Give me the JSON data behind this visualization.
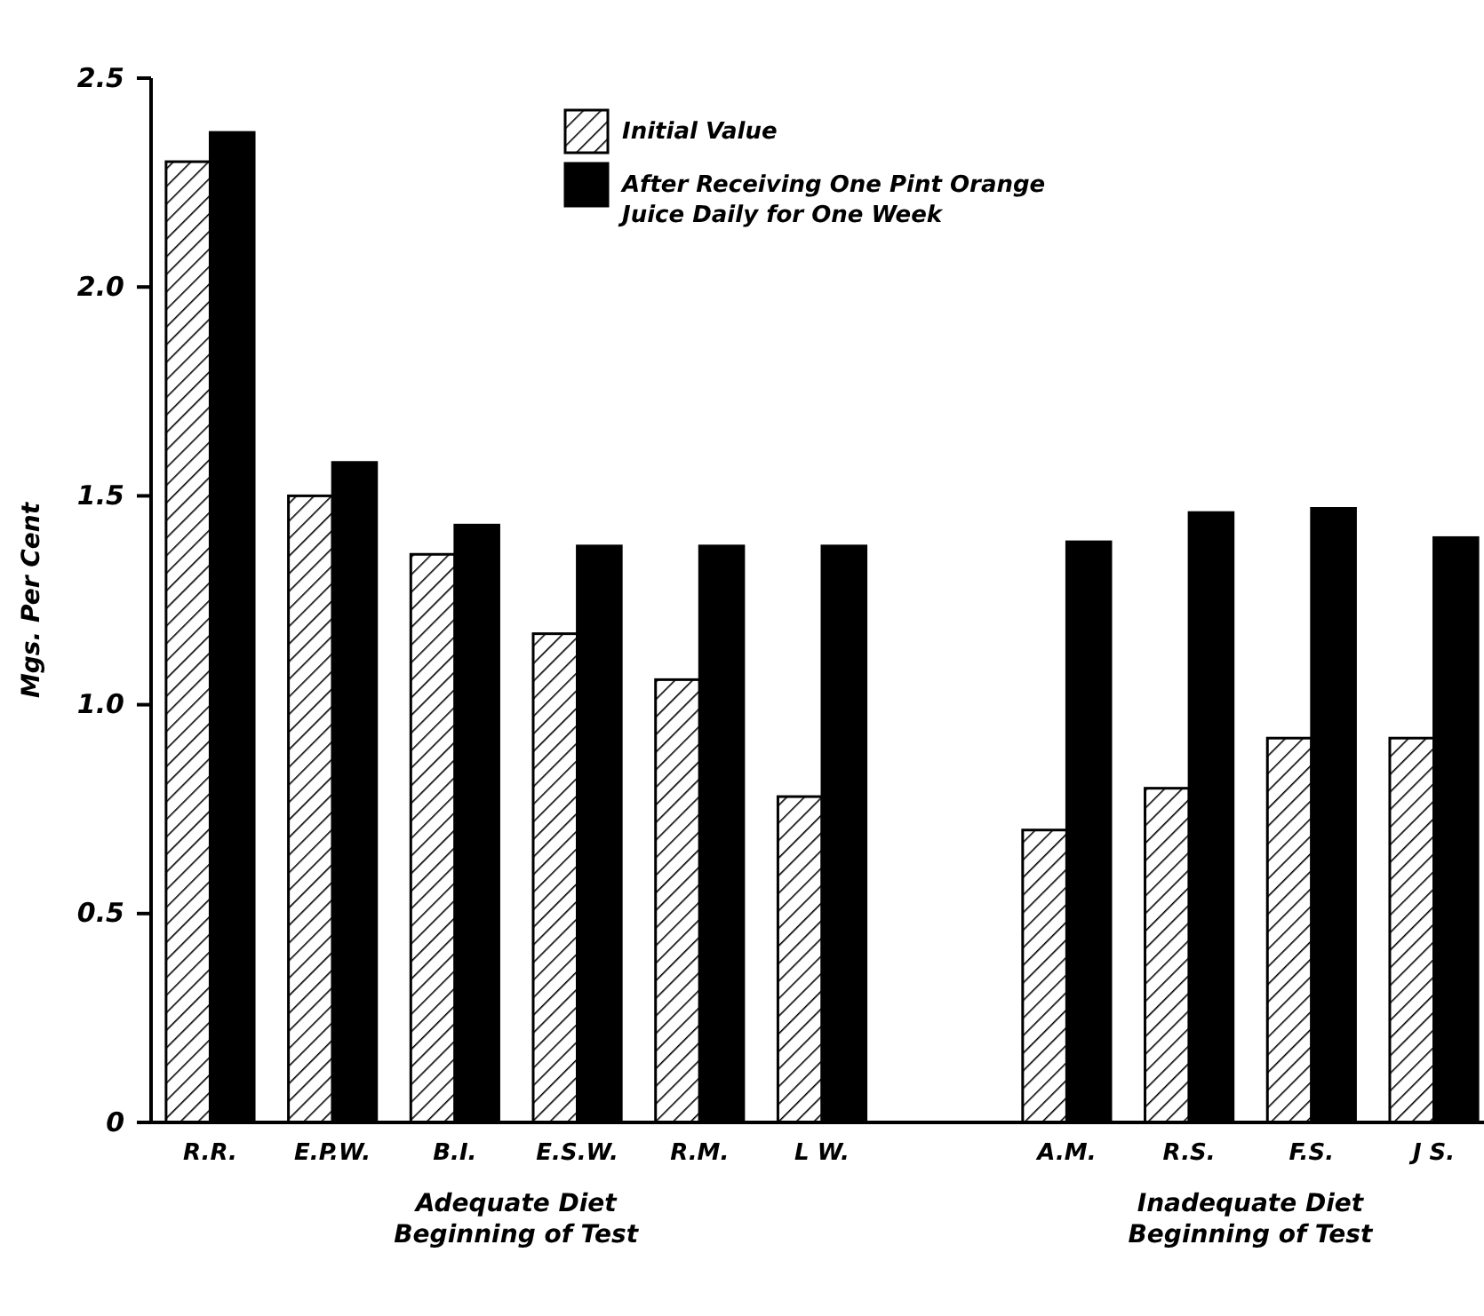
{
  "chart_data": {
    "type": "bar",
    "ylabel": "Mgs. Per Cent",
    "categories": [
      "R.R.",
      "E.P.W.",
      "B.I.",
      "E.S.W.",
      "R.M.",
      "L W.",
      null,
      "A.M.",
      "R.S.",
      "F.S.",
      "J S."
    ],
    "series": [
      {
        "name": "Initial Value",
        "color": "#000000",
        "values": [
          2.3,
          1.5,
          1.36,
          1.17,
          1.06,
          0.78,
          null,
          0.7,
          0.8,
          0.92,
          0.92
        ]
      },
      {
        "name": "After Receiving One Pint Orange Juice Daily for One Week",
        "color": "#000000",
        "values": [
          2.37,
          1.58,
          1.43,
          1.38,
          1.38,
          1.38,
          null,
          1.39,
          1.46,
          1.47,
          1.4
        ]
      }
    ],
    "ylim": [
      0,
      2.5
    ],
    "yticks": [
      0,
      0.5,
      {
        "value": 1,
        "label": "1.0"
      },
      1.5,
      {
        "value": 2,
        "label": "2.0"
      },
      2.5
    ],
    "legend": "top",
    "annotations": [
      "Adequate Diet\nBeginning of Test",
      "Inadequate Diet\nBeginning of Test"
    ]
  }
}
